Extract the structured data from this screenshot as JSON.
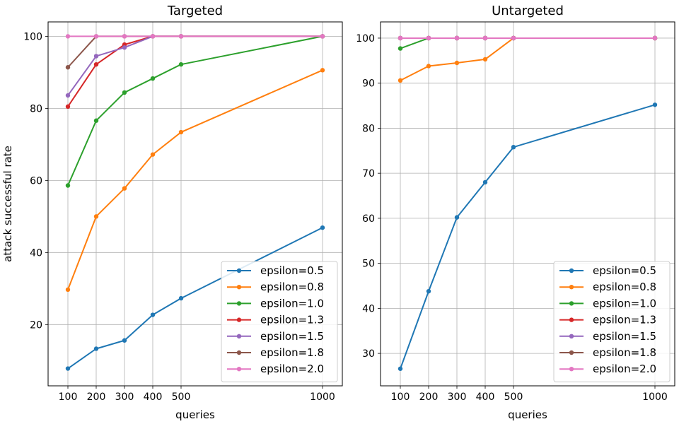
{
  "chart_data": [
    {
      "type": "line",
      "title": "Targeted",
      "xlabel": "queries",
      "ylabel": "attack successful rate",
      "x": [
        100,
        200,
        300,
        400,
        500,
        1000
      ],
      "xticks": [
        100,
        200,
        300,
        400,
        500,
        1000
      ],
      "yticks": [
        20,
        40,
        60,
        80,
        100
      ],
      "xlim": [
        30,
        1070
      ],
      "ylim": [
        3,
        104
      ],
      "grid": true,
      "legend_position": "lower-right",
      "series": [
        {
          "name": "epsilon=0.5",
          "color": "#1f77b4",
          "values": [
            7.8,
            13.3,
            15.6,
            22.7,
            27.3,
            46.9
          ]
        },
        {
          "name": "epsilon=0.8",
          "color": "#ff7f0e",
          "values": [
            29.7,
            50.0,
            57.8,
            67.2,
            73.4,
            90.6
          ]
        },
        {
          "name": "epsilon=1.0",
          "color": "#2ca02c",
          "values": [
            58.6,
            76.6,
            84.4,
            88.3,
            92.2,
            100
          ]
        },
        {
          "name": "epsilon=1.3",
          "color": "#d62728",
          "values": [
            80.5,
            92.2,
            97.7,
            100,
            100,
            100
          ]
        },
        {
          "name": "epsilon=1.5",
          "color": "#9467bd",
          "values": [
            83.6,
            94.5,
            96.9,
            100,
            100,
            100
          ]
        },
        {
          "name": "epsilon=1.8",
          "color": "#8c564b",
          "values": [
            91.4,
            100,
            100,
            100,
            100,
            100
          ]
        },
        {
          "name": "epsilon=2.0",
          "color": "#e377c2",
          "values": [
            100,
            100,
            100,
            100,
            100,
            100
          ]
        }
      ]
    },
    {
      "type": "line",
      "title": "Untargeted",
      "xlabel": "queries",
      "ylabel": "",
      "x": [
        100,
        200,
        300,
        400,
        500,
        1000
      ],
      "xticks": [
        100,
        200,
        300,
        400,
        500,
        1000
      ],
      "yticks": [
        30,
        40,
        50,
        60,
        70,
        80,
        90,
        100
      ],
      "xlim": [
        30,
        1070
      ],
      "ylim": [
        22.8,
        103.6
      ],
      "grid": true,
      "legend_position": "lower-right",
      "series": [
        {
          "name": "epsilon=0.5",
          "color": "#1f77b4",
          "values": [
            26.6,
            43.8,
            60.2,
            68.0,
            75.8,
            85.2
          ]
        },
        {
          "name": "epsilon=0.8",
          "color": "#ff7f0e",
          "values": [
            90.6,
            93.8,
            94.5,
            95.3,
            100,
            100
          ]
        },
        {
          "name": "epsilon=1.0",
          "color": "#2ca02c",
          "values": [
            97.7,
            100,
            100,
            100,
            100,
            100
          ]
        },
        {
          "name": "epsilon=1.3",
          "color": "#d62728",
          "values": [
            100,
            100,
            100,
            100,
            100,
            100
          ]
        },
        {
          "name": "epsilon=1.5",
          "color": "#9467bd",
          "values": [
            100,
            100,
            100,
            100,
            100,
            100
          ]
        },
        {
          "name": "epsilon=1.8",
          "color": "#8c564b",
          "values": [
            100,
            100,
            100,
            100,
            100,
            100
          ]
        },
        {
          "name": "epsilon=2.0",
          "color": "#e377c2",
          "values": [
            100,
            100,
            100,
            100,
            100,
            100
          ]
        }
      ]
    }
  ]
}
